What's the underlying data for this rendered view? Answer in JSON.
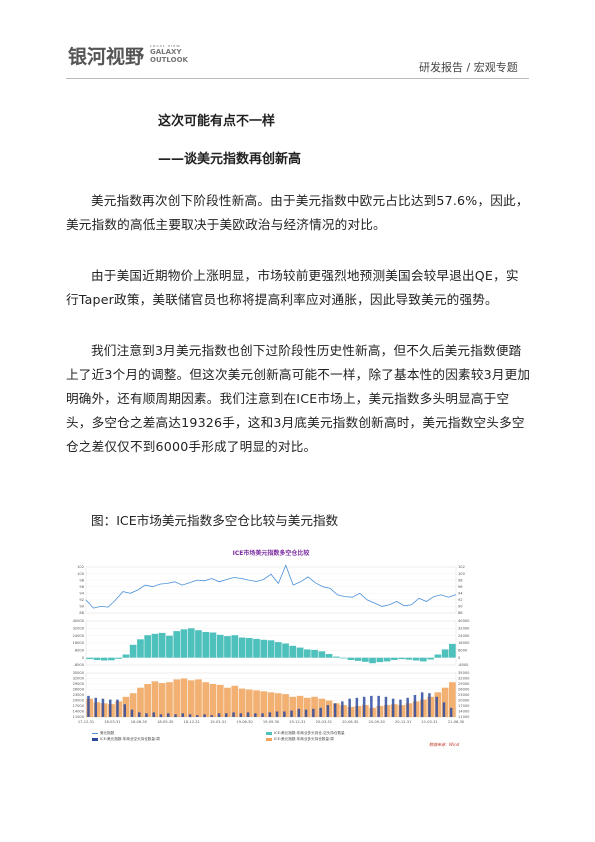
{
  "header": {
    "logo_cn": "银河视野",
    "logo_en_tiny": "LOCAL VIEW",
    "logo_en_1": "GALAXY",
    "logo_en_2": "OUTLOOK",
    "right": "研发报告 / 宏观专题"
  },
  "title1": "这次可能有点不一样",
  "title2": "——谈美元指数再创新高",
  "paragraphs": [
    "美元指数再次创下阶段性新高。由于美元指数中欧元占比达到57.6%，因此，美元指数的高低主要取决于美欧政治与经济情况的对比。",
    "由于美国近期物价上涨明显，市场较前更强烈地预测美国会较早退出QE，实行Taper政策，美联储官员也称将提高利率应对通胀，因此导致美元的强势。",
    "我们注意到3月美元指数也创下过阶段性历史性新高，但不久后美元指数便踏上了近3个月的调整。但这次美元创新高可能不一样，除了基本性的因素较3月更加明确外，还有顺周期因素。我们注意到在ICE市场上，美元指数多头明显高于空头，多空仓之差高达19326手，这和3月底美元指数创新高时，美元指数空头多空仓之差仅仅不到6000手形成了明显的对比。"
  ],
  "figure_caption": "图：ICE市场美元指数多空仓比较与美元指数",
  "chart_data": {
    "type": "line",
    "title": "ICE市场美元指数多空仓比较",
    "x_ticks": [
      "17-12-31",
      "18-03-31",
      "18-06-30",
      "18-09-30",
      "18-12-31",
      "19-03-31",
      "19-06-30",
      "19-09-30",
      "19-12-31",
      "20-03-31",
      "20-06-30",
      "20-09-30",
      "20-12-31",
      "21-03-31",
      "21-06-30"
    ],
    "panel1": {
      "left_ticks": [
        "102",
        "100",
        "98",
        "96",
        "94",
        "92",
        "90",
        "88"
      ],
      "right_ticks": [
        "102",
        "100",
        "98",
        "96",
        "94",
        "92",
        "90",
        "88"
      ],
      "ylim": [
        88,
        102
      ],
      "series": [
        {
          "name": "美元指数",
          "color": "#4a90d9",
          "values": [
            92,
            89.5,
            90,
            89.8,
            92,
            94.5,
            94,
            95,
            96.5,
            96,
            96.8,
            97,
            97.5,
            96.5,
            97.2,
            98,
            97.8,
            98.5,
            97.5,
            98.2,
            98.8,
            98.5,
            98,
            97.6,
            98.2,
            99.8,
            97,
            102.5,
            96.5,
            97.5,
            99,
            97.2,
            96,
            95.5,
            93.5,
            93,
            92.8,
            94,
            92,
            91,
            90,
            90.5,
            91.5,
            90.2,
            90.5,
            92.5,
            91.5,
            93,
            93.5,
            92.8,
            93.6
          ]
        }
      ]
    },
    "panel2": {
      "left_ticks": [
        "40000",
        "32000",
        "24000",
        "16000",
        "8000",
        "0",
        "-8000"
      ],
      "right_ticks": [
        "40000",
        "32000",
        "24000",
        "16000",
        "8000",
        "0",
        "-8000"
      ],
      "ylim": [
        -8000,
        40000
      ],
      "series": [
        {
          "name": "ICE:美元指数:非商业多头持仓-空头持仓数量",
          "color": "#4fc1bd",
          "values": [
            -1500,
            -2500,
            -3000,
            -2800,
            -1200,
            3500,
            14000,
            20000,
            24500,
            26000,
            27000,
            24000,
            29000,
            31000,
            32000,
            30000,
            28000,
            27500,
            25000,
            23500,
            24500,
            22000,
            21500,
            20500,
            19500,
            19000,
            17000,
            15500,
            13000,
            11000,
            9000,
            8500,
            7000,
            4000,
            1200,
            -800,
            -2500,
            -3500,
            -4500,
            -6000,
            -4800,
            -4000,
            -2500,
            -1500,
            -2200,
            -3000,
            -4000,
            -2000,
            3500,
            9000,
            15000
          ]
        }
      ]
    },
    "panel3": {
      "left_ticks": [
        "35000",
        "32000",
        "29000",
        "26000",
        "23000",
        "20000",
        "17000",
        "14000",
        "11000"
      ],
      "right_ticks": [
        "35000",
        "32000",
        "29000",
        "26000",
        "23000",
        "20000",
        "17000",
        "14000",
        "11000"
      ],
      "ylim": [
        11000,
        35000
      ],
      "series": [
        {
          "name": "ICE:美元指数:非商业多头持仓数量:周",
          "color": "#f0a35a",
          "values": [
            21000,
            19000,
            18500,
            18000,
            19500,
            22000,
            24000,
            27000,
            29000,
            30500,
            29500,
            30000,
            31500,
            32000,
            31000,
            31500,
            30000,
            29000,
            28500,
            27000,
            28000,
            26500,
            26000,
            25500,
            25000,
            24500,
            24000,
            23500,
            22000,
            22500,
            21500,
            22000,
            21000,
            20000,
            18500,
            17500,
            16500,
            17000,
            17500,
            16000,
            17000,
            17500,
            18000,
            17500,
            18500,
            19500,
            20500,
            22000,
            24500,
            27000,
            30000
          ]
        },
        {
          "name": "ICE:美元指数:非商业空头持仓数量:周",
          "color": "#2e4a9e",
          "values": [
            22500,
            21500,
            21000,
            20500,
            20500,
            18000,
            15000,
            13500,
            13000,
            13500,
            12500,
            13000,
            12500,
            13000,
            12500,
            12000,
            12500,
            12000,
            13000,
            13000,
            13500,
            13000,
            13500,
            13000,
            13000,
            13500,
            14000,
            14000,
            14500,
            15500,
            15000,
            15500,
            16000,
            17500,
            18500,
            19500,
            21000,
            21500,
            22000,
            22500,
            22500,
            22000,
            21000,
            20500,
            21500,
            23000,
            24500,
            24000,
            22000,
            19000,
            16000
          ]
        }
      ]
    },
    "legend": [
      {
        "name": "美元指数",
        "color": "#4a90d9"
      },
      {
        "name": "ICE:美元指数:非商业多头持仓-空头持仓数量",
        "color": "#4fc1bd"
      },
      {
        "name": "ICE:美元指数:非商业空头持仓数量:周",
        "color": "#2e4a9e"
      },
      {
        "name": "ICE:美元指数:非商业多头持仓数量:周",
        "color": "#f0a35a"
      }
    ],
    "source": "数据来源：Wind"
  }
}
